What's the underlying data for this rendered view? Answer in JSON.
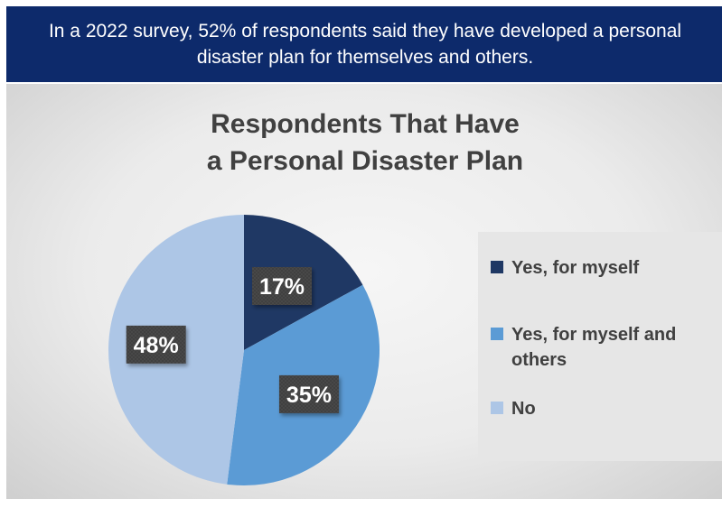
{
  "header": {
    "text": "In a 2022 survey, 52% of respondents said they have developed a personal disaster plan for themselves and others."
  },
  "chart_data": {
    "type": "pie",
    "title": "Respondents That Have a Personal Disaster Plan",
    "legend_position": "right",
    "slices": [
      {
        "label": "Yes, for myself",
        "value": 17,
        "data_label": "17%",
        "color": "#1f3864"
      },
      {
        "label": "Yes, for myself and others",
        "value": 35,
        "data_label": "35%",
        "color": "#5b9bd5"
      },
      {
        "label": "No",
        "value": 48,
        "data_label": "48%",
        "color": "#adc6e6"
      }
    ]
  },
  "colors": {
    "header_bg": "#0d2a6b",
    "data_label_bg": "#404040"
  }
}
